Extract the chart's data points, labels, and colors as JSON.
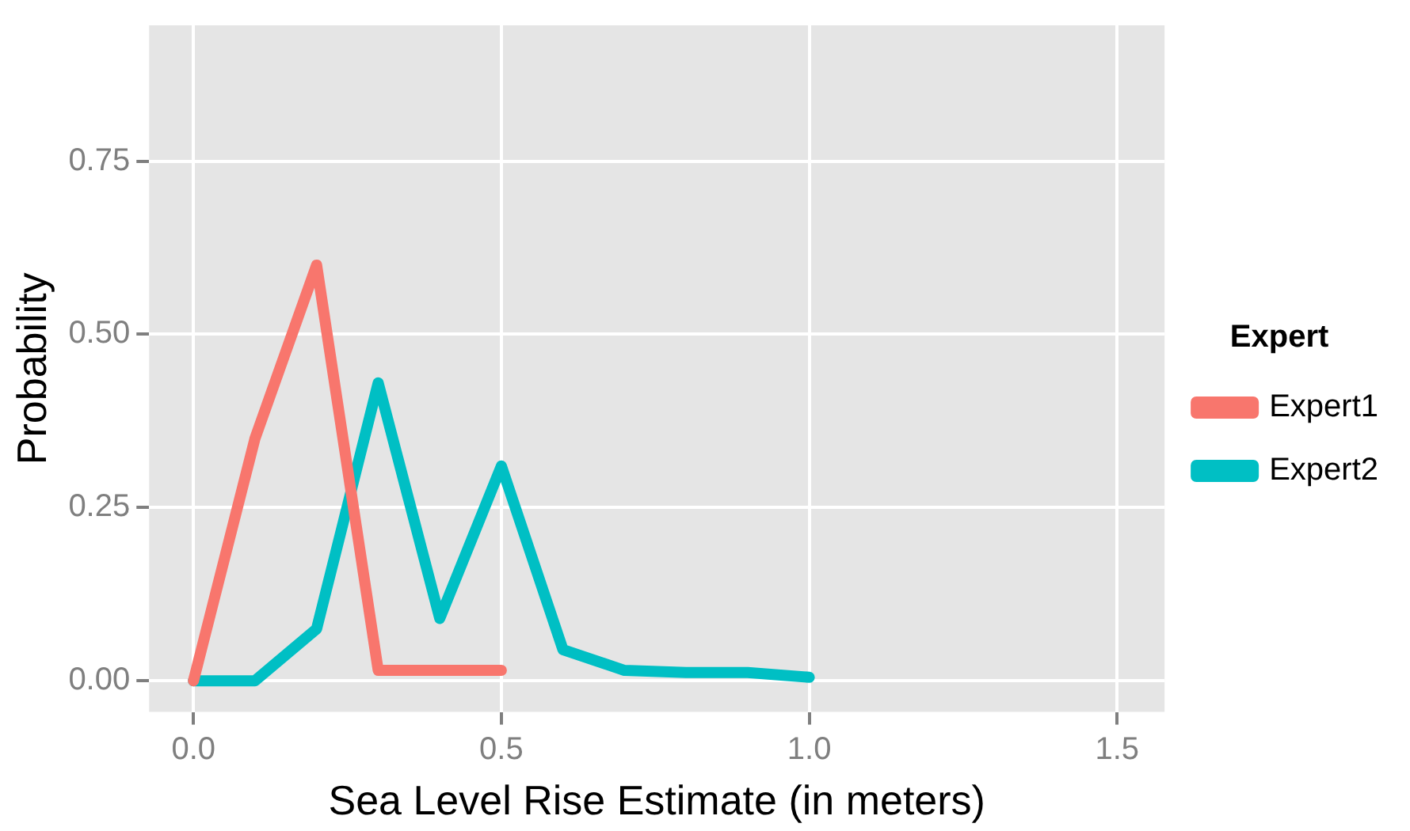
{
  "chart_data": {
    "type": "line",
    "xlabel": "Sea Level Rise Estimate (in meters)",
    "ylabel": "Probability",
    "legend_title": "Expert",
    "legend": "right",
    "grid": true,
    "marker": "none",
    "line_style": "solid",
    "xlim": [
      -0.072,
      1.577
    ],
    "xticks": [
      {
        "value": 0,
        "label": "0.0"
      },
      0.5,
      {
        "value": 1,
        "label": "1.0"
      },
      1.5
    ],
    "ylim": [
      -0.045,
      0.946
    ],
    "yticks": [
      {
        "value": 0,
        "label": "0.00"
      },
      0.25,
      {
        "value": 0.5,
        "label": "0.50"
      },
      0.75
    ],
    "series": [
      {
        "name": "Expert1",
        "color": "#f8766d",
        "x": [
          0,
          0.1,
          0.2,
          0.3,
          0.4,
          0.5
        ],
        "values": [
          0,
          0.35,
          0.6,
          0.015,
          0.015,
          0.015
        ]
      },
      {
        "name": "Expert2",
        "color": "#00bfc4",
        "x": [
          0,
          0.1,
          0.2,
          0.3,
          0.4,
          0.5,
          0.6,
          0.7,
          0.8,
          0.9,
          1.0
        ],
        "values": [
          0,
          0,
          0.075,
          0.43,
          0.09,
          0.31,
          0.045,
          0.015,
          0.012,
          0.012,
          0.005
        ]
      }
    ]
  }
}
